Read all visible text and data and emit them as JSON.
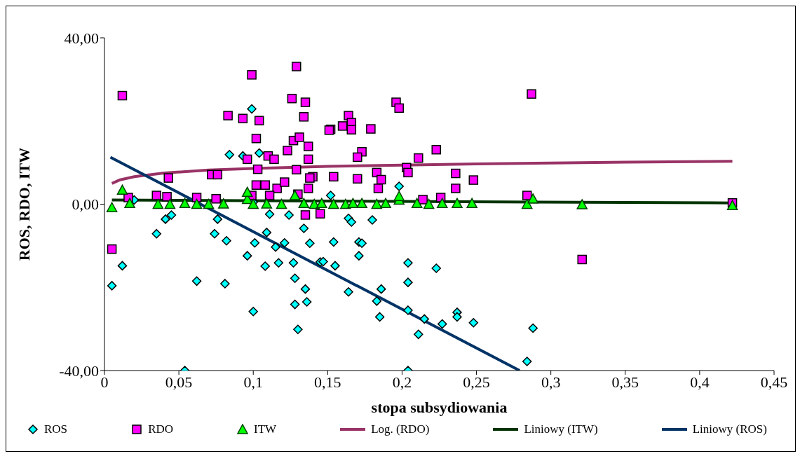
{
  "chart_data": {
    "type": "scatter",
    "xlabel": "stopa subsydiowania",
    "ylabel": "ROS, RDO, ITW",
    "xlim": [
      0,
      0.45
    ],
    "ylim": [
      -40,
      40
    ],
    "xticks": [
      0,
      {
        "value": 0.05,
        "label": "0,05"
      },
      {
        "value": 0.1,
        "label": "0,1"
      },
      {
        "value": 0.15,
        "label": "0,15"
      },
      {
        "value": 0.2,
        "label": "0,2"
      },
      {
        "value": 0.25,
        "label": "0,25"
      },
      {
        "value": 0.3,
        "label": "0,3"
      },
      {
        "value": 0.35,
        "label": "0,35"
      },
      {
        "value": 0.4,
        "label": "0,4"
      },
      {
        "value": 0.45,
        "label": "0,45"
      }
    ],
    "yticks": [
      {
        "value": -40,
        "label": "-40,00"
      },
      {
        "value": 0,
        "label": "0,00"
      },
      {
        "value": 40,
        "label": "40,00"
      }
    ],
    "grid": false,
    "legend": "bottom",
    "series": [
      {
        "name": "ROS",
        "marker": "diamond",
        "color": "#00ffff",
        "x": [
          0.005,
          0.012,
          0.035,
          0.041,
          0.045,
          0.062,
          0.054,
          0.074,
          0.076,
          0.082,
          0.081,
          0.096,
          0.1,
          0.101,
          0.108,
          0.109,
          0.115,
          0.117,
          0.121,
          0.127,
          0.128,
          0.128,
          0.13,
          0.134,
          0.135,
          0.136,
          0.138,
          0.145,
          0.111,
          0.124,
          0.147,
          0.154,
          0.155,
          0.164,
          0.166,
          0.18,
          0.171,
          0.173,
          0.171,
          0.164,
          0.204,
          0.223,
          0.204,
          0.186,
          0.183,
          0.185,
          0.204,
          0.215,
          0.211,
          0.227,
          0.237,
          0.237,
          0.248,
          0.204,
          0.288,
          0.284,
          0.099,
          0.084,
          0.093,
          0.104,
          0.152,
          0.198,
          0.02,
          0.1
        ],
        "values": [
          -19.6,
          -14.8,
          -7.1,
          -3.6,
          -2.6,
          -18.5,
          -40,
          -7.1,
          -3.6,
          -8.8,
          -19.1,
          -12.4,
          -25.8,
          -9.3,
          -14.9,
          -6.8,
          -10.3,
          -14.1,
          -9.3,
          -14.1,
          -17.8,
          -24.1,
          -30.1,
          -5.8,
          -20.4,
          -23.5,
          -9.4,
          -13.9,
          -2.4,
          -2.6,
          -13.8,
          -9.1,
          -14.8,
          -3.4,
          -4.3,
          -3.8,
          -9.1,
          -9.4,
          -12.4,
          -21.1,
          -14.1,
          -15.4,
          -18.8,
          -20.4,
          -23.3,
          -27.1,
          -25.5,
          -27.6,
          -31.3,
          -28.8,
          -26,
          -27.1,
          -28.5,
          -40,
          -29.8,
          -37.8,
          22.9,
          11.9,
          11.6,
          12.3,
          2.1,
          4.3,
          1,
          0.5
        ]
      },
      {
        "name": "RDO",
        "marker": "square",
        "color": "#ff00ff",
        "x": [
          0.012,
          0.099,
          0.129,
          0.126,
          0.135,
          0.083,
          0.093,
          0.104,
          0.134,
          0.102,
          0.152,
          0.127,
          0.131,
          0.137,
          0.11,
          0.114,
          0.123,
          0.137,
          0.096,
          0.14,
          0.103,
          0.129,
          0.043,
          0.072,
          0.076,
          0.102,
          0.108,
          0.116,
          0.121,
          0.138,
          0.137,
          0.035,
          0.016,
          0.042,
          0.062,
          0.075,
          0.099,
          0.111,
          0.13,
          0.287,
          0.196,
          0.198,
          0.164,
          0.16,
          0.166,
          0.151,
          0.166,
          0.179,
          0.173,
          0.17,
          0.223,
          0.211,
          0.203,
          0.204,
          0.154,
          0.17,
          0.183,
          0.186,
          0.236,
          0.248,
          0.236,
          0.184,
          0.284,
          0.226,
          0.214,
          0.005,
          0.321,
          0.422,
          0.135,
          0.145
        ],
        "values": [
          26.1,
          31.1,
          33.1,
          25.4,
          24.5,
          21.3,
          20.6,
          20.1,
          21,
          15.8,
          18,
          15.3,
          16.1,
          13.9,
          11.6,
          10.8,
          12.9,
          10.8,
          10.8,
          6.6,
          8.4,
          8.3,
          6.3,
          7.1,
          7.1,
          4.6,
          4.6,
          3.8,
          5.3,
          6.3,
          3.8,
          2.1,
          1.6,
          1.8,
          1.6,
          1.3,
          2.1,
          2.1,
          2.4,
          26.5,
          24.5,
          23.1,
          21.3,
          18.8,
          19.6,
          17.8,
          17.9,
          18.1,
          12.6,
          11.3,
          13.1,
          11.1,
          8.8,
          7.6,
          6.6,
          6.1,
          7.6,
          5.9,
          7.4,
          5.8,
          3.8,
          3.8,
          2.1,
          1.6,
          1.1,
          -10.8,
          -13.3,
          0.3,
          -2.6,
          -2.3
        ]
      },
      {
        "name": "ITW",
        "marker": "triangle",
        "color": "#00ff00",
        "x": [
          0.005,
          0.012,
          0.017,
          0.036,
          0.044,
          0.054,
          0.062,
          0.07,
          0.08,
          0.096,
          0.096,
          0.1,
          0.109,
          0.119,
          0.128,
          0.134,
          0.141,
          0.146,
          0.154,
          0.162,
          0.167,
          0.173,
          0.183,
          0.189,
          0.198,
          0.198,
          0.21,
          0.218,
          0.227,
          0.237,
          0.247,
          0.284,
          0.288,
          0.321,
          0.422
        ],
        "values": [
          -0.8,
          3.4,
          0.2,
          0,
          0,
          0.2,
          0,
          0,
          0.1,
          1.2,
          2.9,
          0,
          0.1,
          0,
          2.1,
          0.2,
          0,
          0.2,
          0,
          0,
          0.2,
          0.2,
          0,
          0.2,
          1,
          1.9,
          0.2,
          0,
          0.2,
          0.2,
          0.2,
          0,
          1.3,
          -0.1,
          -0.3
        ]
      },
      {
        "name": "Log. (RDO)",
        "type": "line",
        "color": "#993366",
        "x": [
          0.005,
          0.01,
          0.02,
          0.04,
          0.07,
          0.1,
          0.15,
          0.2,
          0.25,
          0.3,
          0.35,
          0.422
        ],
        "values": [
          5,
          5.8,
          6.6,
          7.5,
          8.2,
          8.6,
          9.1,
          9.4,
          9.7,
          9.9,
          10.1,
          10.3
        ]
      },
      {
        "name": "Liniowy (ITW)",
        "type": "line",
        "color": "#003300",
        "x": [
          0.005,
          0.422
        ],
        "values": [
          1,
          0.3
        ]
      },
      {
        "name": "Liniowy (ROS)",
        "type": "line",
        "color": "#003366",
        "x": [
          0.004,
          0.279
        ],
        "values": [
          11.3,
          -40
        ]
      }
    ]
  }
}
